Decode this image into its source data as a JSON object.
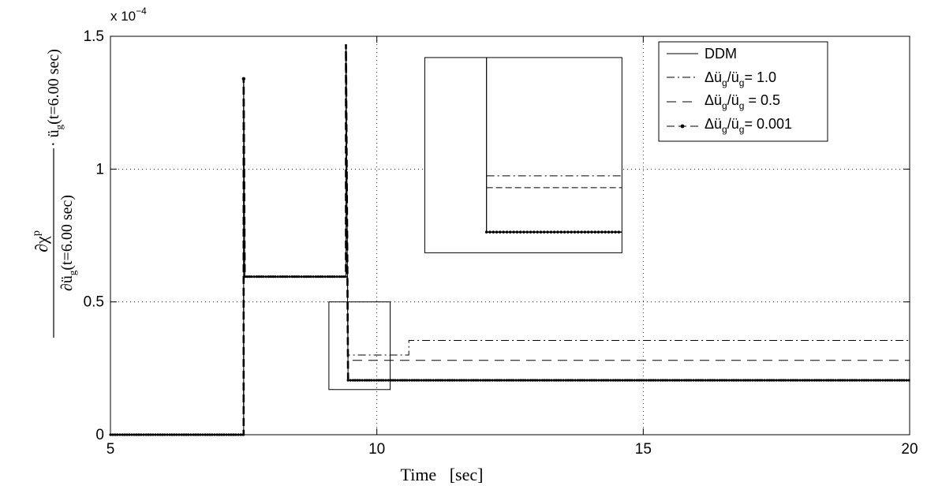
{
  "chart_data": {
    "type": "line",
    "title": "",
    "xlabel": "Time   [sec]",
    "ylabel": {
      "numerator": "∂χ",
      "numerator_superscript": "p",
      "denominator": "∂ü",
      "denominator_subscript": "g",
      "denominator_suffix": "(t=6.00 sec)",
      "factor_prefix": "· ü",
      "factor_subscript": "g",
      "factor_suffix": "(t=6.00 sec)"
    },
    "exponent_label": {
      "base": "x 10",
      "power": "−4"
    },
    "xlim": [
      5,
      20
    ],
    "ylim": [
      0,
      1.5
    ],
    "y_scale_multiplier": 0.0001,
    "x_ticks": [
      5,
      10,
      15,
      20
    ],
    "x_tick_labels": [
      "5",
      "10",
      "15",
      "20"
    ],
    "y_ticks": [
      0,
      0.5,
      1,
      1.5
    ],
    "y_tick_labels": [
      "0",
      "0.5",
      "1",
      "1.5"
    ],
    "grid": true,
    "legend_position": "top-right",
    "series": [
      {
        "name": "DDM",
        "style": "solid",
        "points": [
          [
            5,
            0
          ],
          [
            7.5,
            0
          ],
          [
            7.5,
            1.34
          ],
          [
            7.52,
            0.595
          ],
          [
            9.42,
            0.595
          ],
          [
            9.42,
            1.47
          ],
          [
            9.46,
            0.205
          ],
          [
            20,
            0.205
          ]
        ]
      },
      {
        "name": "Δü_g/ü_g = 1.0",
        "style": "dashdot",
        "points": [
          [
            5,
            0
          ],
          [
            7.5,
            0
          ],
          [
            7.5,
            1.34
          ],
          [
            7.52,
            0.595
          ],
          [
            9.42,
            0.595
          ],
          [
            9.42,
            1.47
          ],
          [
            9.46,
            0.3
          ],
          [
            10.6,
            0.3
          ],
          [
            10.6,
            0.355
          ],
          [
            20,
            0.355
          ]
        ]
      },
      {
        "name": "Δü_g/ü_g = 0.5",
        "style": "dashed",
        "points": [
          [
            5,
            0
          ],
          [
            7.5,
            0
          ],
          [
            7.5,
            1.34
          ],
          [
            7.52,
            0.595
          ],
          [
            9.42,
            0.595
          ],
          [
            9.42,
            1.47
          ],
          [
            9.46,
            0.28
          ],
          [
            20,
            0.28
          ]
        ]
      },
      {
        "name": "Δü_g/ü_g = 0.001",
        "style": "dotted-markers",
        "points": [
          [
            5,
            0
          ],
          [
            7.5,
            0
          ],
          [
            7.5,
            1.34
          ],
          [
            7.52,
            0.595
          ],
          [
            9.42,
            0.595
          ],
          [
            9.42,
            1.47
          ],
          [
            9.46,
            0.205
          ],
          [
            20,
            0.205
          ]
        ]
      }
    ],
    "legend": [
      {
        "prefix": "",
        "main": "DDM",
        "style": "solid"
      },
      {
        "prefix": "Δü",
        "sub1": "g",
        "mid": "/ü",
        "sub2": "g",
        "suffix": "= 1.0",
        "style": "dashdot"
      },
      {
        "prefix": "Δü",
        "sub1": "g",
        "mid": "/ü",
        "sub2": "g",
        "suffix": " = 0.5",
        "style": "dashed"
      },
      {
        "prefix": "Δü",
        "sub1": "g",
        "mid": "/ü",
        "sub2": "g",
        "suffix": "= 0.001",
        "style": "dotted-markers"
      }
    ],
    "annotations": [
      {
        "type": "zoom-box",
        "x_range": [
          9.1,
          10.25
        ],
        "y_range": [
          0.17,
          0.5
        ]
      },
      {
        "type": "inset",
        "description": "magnified view of zoom-box",
        "x_range": [
          10.9,
          14.6
        ],
        "y_range": [
          0.685,
          1.42
        ]
      }
    ]
  }
}
